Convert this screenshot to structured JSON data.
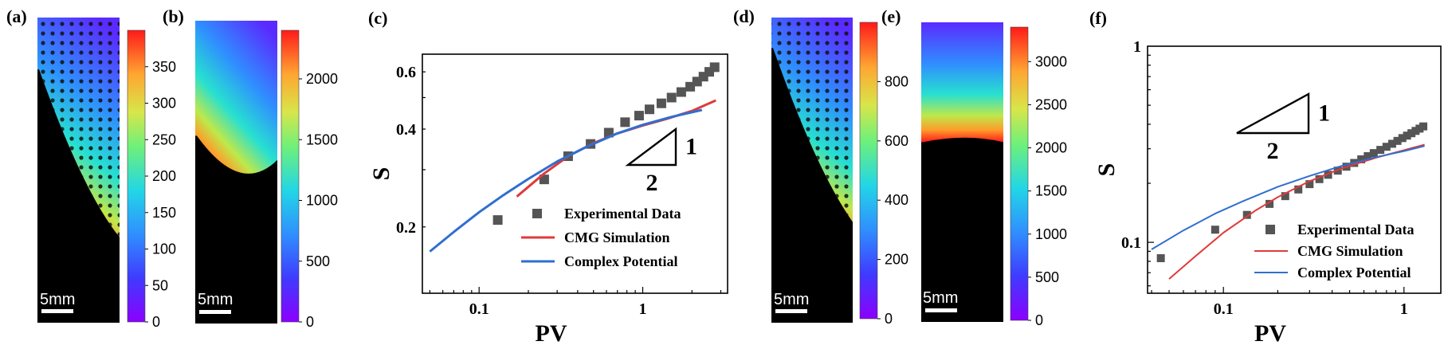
{
  "panels": {
    "a": {
      "label": "(a)",
      "scalebar": "5mm",
      "colorbar_ticks": [
        "0",
        "50",
        "100",
        "150",
        "200",
        "250",
        "300",
        "350"
      ],
      "colorbar_range": [
        0,
        400
      ],
      "sweep_front": 0.62
    },
    "b": {
      "label": "(b)",
      "scalebar": "5mm",
      "colorbar_ticks": [
        "0",
        "500",
        "1000",
        "1500",
        "2000"
      ],
      "colorbar_range": [
        0,
        2400
      ],
      "sweep_front": 0.58
    },
    "d": {
      "label": "(d)",
      "scalebar": "5mm",
      "colorbar_ticks": [
        "0",
        "200",
        "400",
        "600",
        "800"
      ],
      "colorbar_range": [
        0,
        1000
      ],
      "sweep_front": 0.55
    },
    "e": {
      "label": "(e)",
      "scalebar": "5mm",
      "colorbar_ticks": [
        "0",
        "500",
        "1000",
        "1500",
        "2000",
        "2500",
        "3000"
      ],
      "colorbar_range": [
        0,
        3400
      ],
      "sweep_front": 0.42
    },
    "c": {
      "label": "(c)"
    },
    "f": {
      "label": "(f)"
    }
  },
  "colors": {
    "experimental": "#555555",
    "cmg": "#e03a3a",
    "complex": "#2f6fcf"
  },
  "chart_data": [
    {
      "id": "c",
      "type": "scatter",
      "xlabel": "PV",
      "ylabel": "S",
      "xscale": "log",
      "yscale": "log",
      "xlim": [
        0.045,
        3.3
      ],
      "ylim": [
        0.125,
        0.68
      ],
      "xticks": [
        {
          "v": 0.1,
          "t": "0.1"
        },
        {
          "v": 1,
          "t": "1"
        }
      ],
      "yticks": [
        {
          "v": 0.2,
          "t": "0.2"
        },
        {
          "v": 0.4,
          "t": "0.4"
        },
        {
          "v": 0.6,
          "t": "0.6"
        }
      ],
      "legend_position": "bottom-right",
      "slope_triangle": {
        "rise": "1",
        "run": "2"
      },
      "series": [
        {
          "name": "Experimental Data",
          "kind": "markers",
          "x": [
            0.13,
            0.25,
            0.35,
            0.48,
            0.62,
            0.78,
            0.95,
            1.1,
            1.3,
            1.5,
            1.72,
            1.95,
            2.15,
            2.35,
            2.55,
            2.75
          ],
          "y": [
            0.21,
            0.28,
            0.33,
            0.36,
            0.39,
            0.42,
            0.44,
            0.46,
            0.48,
            0.5,
            0.52,
            0.54,
            0.56,
            0.58,
            0.6,
            0.62
          ]
        },
        {
          "name": "CMG Simulation",
          "kind": "line",
          "x": [
            0.17,
            0.25,
            0.35,
            0.5,
            0.7,
            1.0,
            1.4,
            2.0,
            2.8
          ],
          "y": [
            0.248,
            0.292,
            0.33,
            0.362,
            0.388,
            0.41,
            0.43,
            0.455,
            0.49
          ]
        },
        {
          "name": "Complex Potential",
          "kind": "line",
          "x": [
            0.05,
            0.07,
            0.1,
            0.14,
            0.2,
            0.3,
            0.45,
            0.7,
            1.0,
            1.5,
            2.3
          ],
          "y": [
            0.168,
            0.193,
            0.222,
            0.25,
            0.281,
            0.318,
            0.352,
            0.388,
            0.412,
            0.436,
            0.458
          ]
        }
      ]
    },
    {
      "id": "f",
      "type": "scatter",
      "xlabel": "PV",
      "ylabel": "S",
      "xscale": "log",
      "yscale": "log",
      "xlim": [
        0.038,
        1.6
      ],
      "ylim": [
        0.055,
        1.0
      ],
      "xticks": [
        {
          "v": 0.1,
          "t": "0.1"
        },
        {
          "v": 1,
          "t": "1"
        }
      ],
      "yticks": [
        {
          "v": 0.1,
          "t": "0.1"
        },
        {
          "v": 1,
          "t": "1"
        }
      ],
      "legend_position": "bottom-right",
      "slope_triangle": {
        "rise": "1",
        "run": "2"
      },
      "series": [
        {
          "name": "Experimental Data",
          "kind": "markers",
          "x": [
            0.045,
            0.09,
            0.135,
            0.18,
            0.22,
            0.26,
            0.3,
            0.34,
            0.38,
            0.43,
            0.48,
            0.53,
            0.58,
            0.63,
            0.68,
            0.74,
            0.8,
            0.86,
            0.92,
            0.98,
            1.04,
            1.1,
            1.16,
            1.22,
            1.28
          ],
          "y": [
            0.083,
            0.116,
            0.138,
            0.157,
            0.172,
            0.186,
            0.198,
            0.21,
            0.221,
            0.232,
            0.243,
            0.254,
            0.265,
            0.275,
            0.285,
            0.296,
            0.307,
            0.318,
            0.329,
            0.34,
            0.35,
            0.36,
            0.37,
            0.38,
            0.39
          ]
        },
        {
          "name": "CMG Simulation",
          "kind": "line",
          "x": [
            0.05,
            0.07,
            0.1,
            0.15,
            0.2,
            0.3,
            0.45,
            0.7,
            1.0,
            1.3
          ],
          "y": [
            0.065,
            0.085,
            0.112,
            0.145,
            0.17,
            0.205,
            0.238,
            0.27,
            0.295,
            0.315
          ]
        },
        {
          "name": "Complex Potential",
          "kind": "line",
          "x": [
            0.04,
            0.06,
            0.09,
            0.13,
            0.2,
            0.3,
            0.45,
            0.7,
            1.0,
            1.3
          ],
          "y": [
            0.092,
            0.115,
            0.14,
            0.163,
            0.192,
            0.218,
            0.245,
            0.272,
            0.292,
            0.31
          ]
        }
      ]
    }
  ]
}
